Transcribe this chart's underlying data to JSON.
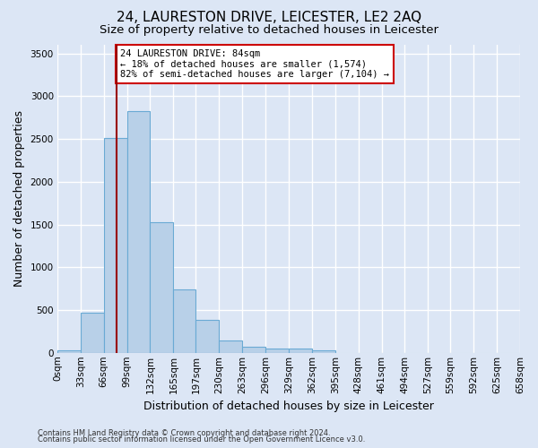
{
  "title": "24, LAURESTON DRIVE, LEICESTER, LE2 2AQ",
  "subtitle": "Size of property relative to detached houses in Leicester",
  "xlabel": "Distribution of detached houses by size in Leicester",
  "ylabel": "Number of detached properties",
  "footer_line1": "Contains HM Land Registry data © Crown copyright and database right 2024.",
  "footer_line2": "Contains public sector information licensed under the Open Government Licence v3.0.",
  "annotation_line1": "24 LAURESTON DRIVE: 84sqm",
  "annotation_line2": "← 18% of detached houses are smaller (1,574)",
  "annotation_line3": "82% of semi-detached houses are larger (7,104) →",
  "property_size_sqm": 84,
  "bin_edges": [
    0,
    33,
    66,
    99,
    132,
    165,
    197,
    230,
    263,
    296,
    329,
    362,
    395,
    428,
    461,
    494,
    527,
    559,
    592,
    625,
    658
  ],
  "bar_heights": [
    25,
    470,
    2510,
    2820,
    1530,
    745,
    390,
    145,
    75,
    55,
    55,
    25,
    0,
    0,
    0,
    0,
    0,
    0,
    0,
    0
  ],
  "bar_color": "#b8d0e8",
  "bar_edge_color": "#6aaad4",
  "vline_color": "#990000",
  "vline_x": 84,
  "ylim": [
    0,
    3600
  ],
  "yticks": [
    0,
    500,
    1000,
    1500,
    2000,
    2500,
    3000,
    3500
  ],
  "bg_color": "#dce6f5",
  "plot_bg_color": "#dce6f5",
  "grid_color": "#ffffff",
  "annotation_box_facecolor": "#ffffff",
  "annotation_box_edgecolor": "#cc0000",
  "title_fontsize": 11,
  "subtitle_fontsize": 9.5,
  "tick_fontsize": 7.5,
  "ylabel_fontsize": 9,
  "xlabel_fontsize": 9,
  "annotation_fontsize": 7.5,
  "footer_fontsize": 6
}
